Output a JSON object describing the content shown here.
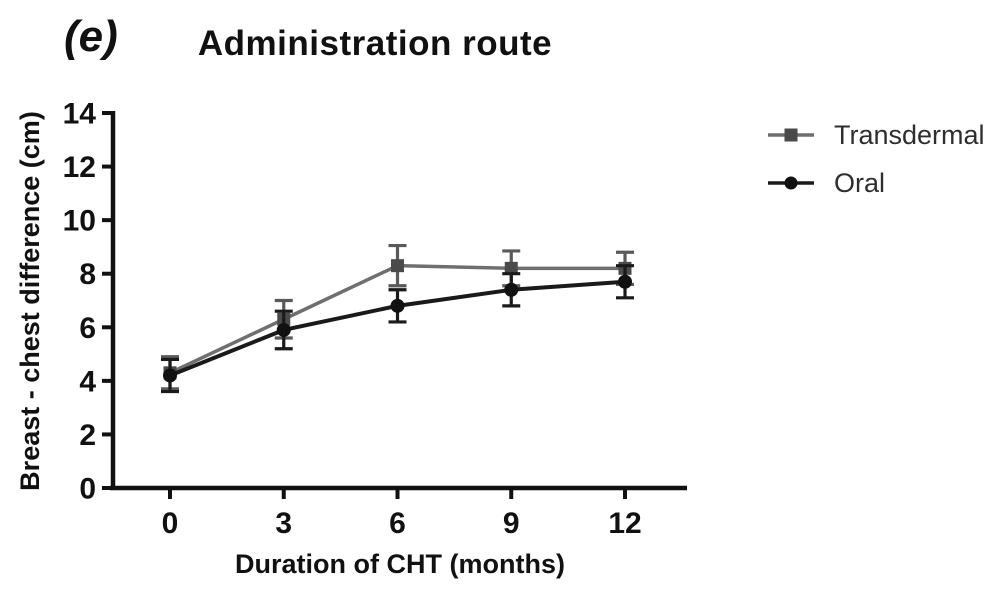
{
  "panel_label": "(e)",
  "title": "Administration route",
  "chart_data": {
    "type": "line",
    "title": "Administration route",
    "xlabel": "Duration of CHT (months)",
    "ylabel": "Breast - chest difference (cm)",
    "x": [
      0,
      3,
      6,
      9,
      12
    ],
    "xticks": [
      0,
      3,
      6,
      9,
      12
    ],
    "yticks": [
      0,
      2,
      4,
      6,
      8,
      10,
      12,
      14
    ],
    "xlim": [
      -1.6,
      13.7
    ],
    "ylim": [
      0,
      14
    ],
    "grid": false,
    "legend_position": "right-outside",
    "axis_color": "#111111",
    "series": [
      {
        "name": "Transdermal",
        "marker": "square",
        "color": "#6f6f6f",
        "marker_color": "#4a4a4a",
        "error_color": "#5a5a5a",
        "line_width": 3.5,
        "values": [
          4.3,
          6.3,
          8.3,
          8.2,
          8.2
        ],
        "errors": [
          0.6,
          0.7,
          0.75,
          0.65,
          0.6
        ]
      },
      {
        "name": "Oral",
        "marker": "circle",
        "color": "#1a1a1a",
        "marker_color": "#111111",
        "error_color": "#1a1a1a",
        "line_width": 4,
        "values": [
          4.2,
          5.9,
          6.8,
          7.4,
          7.7
        ],
        "errors": [
          0.6,
          0.7,
          0.6,
          0.6,
          0.6
        ]
      }
    ]
  }
}
